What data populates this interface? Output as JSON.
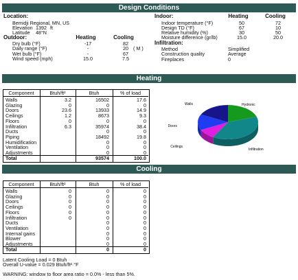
{
  "design": {
    "title": "Design Conditions",
    "location": {
      "heading": "Location:",
      "site": "Bemidji Regional, MN, US",
      "rows": [
        [
          "Elevation",
          "1392",
          "ft"
        ],
        [
          "Latitude",
          "48°N"
        ]
      ]
    },
    "indoor": {
      "heading": "Indoor:",
      "columns": [
        "Heating",
        "Cooling"
      ],
      "rows": [
        [
          "Indoor temperature (°F)",
          "50",
          "72"
        ],
        [
          "Design TD (°F)",
          "67",
          "10"
        ],
        [
          "Relative humidity (%)",
          "30",
          "50"
        ],
        [
          "Moisture difference (gr/lb)",
          "15.0",
          "20.0"
        ]
      ]
    },
    "outdoor": {
      "heading": "Outdoor:",
      "columns": [
        "Heating",
        "Cooling"
      ],
      "rows": [
        [
          "Dry bulb (°F)",
          "-17",
          "82"
        ],
        [
          "Daily range (°F)",
          "-",
          "20",
          "( M )"
        ],
        [
          "Wet bulb (°F)",
          "-",
          "67"
        ],
        [
          "Wind speed (mph)",
          "15.0",
          "7.5"
        ]
      ]
    },
    "infiltration": {
      "heading": "Infiltration:",
      "rows": [
        [
          "Method",
          "Simplified"
        ],
        [
          "Construction quality",
          "Average"
        ],
        [
          "Fireplaces",
          "0"
        ]
      ]
    }
  },
  "heating": {
    "title": "Heating",
    "columns": [
      "Component",
      "Btuh/ft²",
      "Btuh",
      "% of load"
    ],
    "rows": [
      [
        "Walls",
        "3.2",
        "16502",
        "17.6"
      ],
      [
        "Glazing",
        "0",
        "0",
        "0"
      ],
      [
        "Doors",
        "23.6",
        "13933",
        "14.9"
      ],
      [
        "Ceilings",
        "1.2",
        "8673",
        "9.3"
      ],
      [
        "Floors",
        "0",
        "0",
        "0"
      ],
      [
        "Infiltration",
        "6.3",
        "35974",
        "38.4"
      ],
      [
        "Ducts",
        "",
        "0",
        "0"
      ],
      [
        "Piping",
        "",
        "18492",
        "19.8"
      ],
      [
        "Humidification",
        "",
        "0",
        "0"
      ],
      [
        "Ventilation",
        "",
        "0",
        "0"
      ],
      [
        "Adjustments",
        "",
        "0",
        "0"
      ],
      [
        "Total",
        "",
        "93574",
        "100.0"
      ]
    ],
    "pie": {
      "slices": [
        {
          "label": "Hydronic",
          "color": "#169a1e"
        },
        {
          "label": "Infiltration",
          "color": "#12878a"
        },
        {
          "label": "Ceilings",
          "color": "#e01ee0"
        },
        {
          "label": "Doors",
          "color": "#1f3cf0"
        },
        {
          "label": "Walls",
          "color": "#16168a"
        }
      ]
    }
  },
  "cooling": {
    "title": "Cooling",
    "columns": [
      "Component",
      "Btuh/ft²",
      "Btuh",
      "% of load"
    ],
    "rows": [
      [
        "Walls",
        "0",
        "0",
        "0"
      ],
      [
        "Glazing",
        "0",
        "0",
        "0"
      ],
      [
        "Doors",
        "0",
        "0",
        "0"
      ],
      [
        "Ceilings",
        "0",
        "0",
        "0"
      ],
      [
        "Floors",
        "0",
        "0",
        "0"
      ],
      [
        "Infiltration",
        "0",
        "0",
        "0"
      ],
      [
        "Ducts",
        "",
        "0",
        "0"
      ],
      [
        "Ventilation",
        "",
        "0",
        "0"
      ],
      [
        "Internal gains",
        "",
        "0",
        "0"
      ],
      [
        "Blower",
        "",
        "0",
        "0"
      ],
      [
        "Adjustments",
        "",
        "0",
        "0"
      ],
      [
        "Total",
        "",
        "0",
        "0"
      ]
    ]
  },
  "notes": [
    "Latent Cooling Load = 0 Btuh",
    "Overall U-value = 0.029 Btuh/ft²·°F"
  ],
  "warning": "WARNING: window to floor area ratio = 0.0% - less than 5%."
}
